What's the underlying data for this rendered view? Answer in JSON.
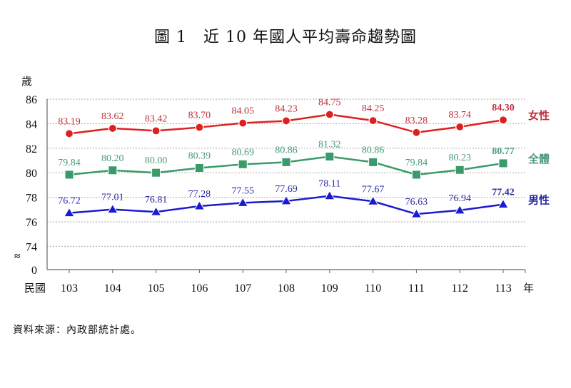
{
  "chart_data": {
    "type": "line",
    "title": "圖 1　近 10 年國人平均壽命趨勢圖",
    "ylabel": "歲",
    "xlabel_prefix": "民國",
    "xlabel_suffix": "年",
    "categories": [
      "103",
      "104",
      "105",
      "106",
      "107",
      "108",
      "109",
      "110",
      "111",
      "112",
      "113"
    ],
    "ylim": [
      74,
      86
    ],
    "yticks": [
      "86",
      "84",
      "82",
      "80",
      "78",
      "76",
      "74",
      "0"
    ],
    "axis_break": "≈",
    "grid": true,
    "legend_placement": "right-of-line-ends",
    "series": [
      {
        "name": "女性",
        "color": "#e02020",
        "label_color": "#c0303a",
        "marker": "circle",
        "values": [
          83.19,
          83.62,
          83.42,
          83.7,
          84.05,
          84.23,
          84.75,
          84.25,
          83.28,
          83.74,
          84.3
        ],
        "labels": [
          "83.19",
          "83.62",
          "83.42",
          "83.70",
          "84.05",
          "84.23",
          "84.75",
          "84.25",
          "83.28",
          "83.74",
          "84.30"
        ]
      },
      {
        "name": "全體",
        "color": "#3a9a6a",
        "label_color": "#4a9a78",
        "marker": "square",
        "values": [
          79.84,
          80.2,
          80.0,
          80.39,
          80.69,
          80.86,
          81.32,
          80.86,
          79.84,
          80.23,
          80.77
        ],
        "labels": [
          "79.84",
          "80.20",
          "80.00",
          "80.39",
          "80.69",
          "80.86",
          "81.32",
          "80.86",
          "79.84",
          "80.23",
          "80.77"
        ]
      },
      {
        "name": "男性",
        "color": "#1a1ad0",
        "label_color": "#2a2aa0",
        "marker": "triangle",
        "values": [
          76.72,
          77.01,
          76.81,
          77.28,
          77.55,
          77.69,
          78.11,
          77.67,
          76.63,
          76.94,
          77.42
        ],
        "labels": [
          "76.72",
          "77.01",
          "76.81",
          "77.28",
          "77.55",
          "77.69",
          "78.11",
          "77.67",
          "76.63",
          "76.94",
          "77.42"
        ]
      }
    ]
  },
  "source": "資料來源：內政部統計處。"
}
